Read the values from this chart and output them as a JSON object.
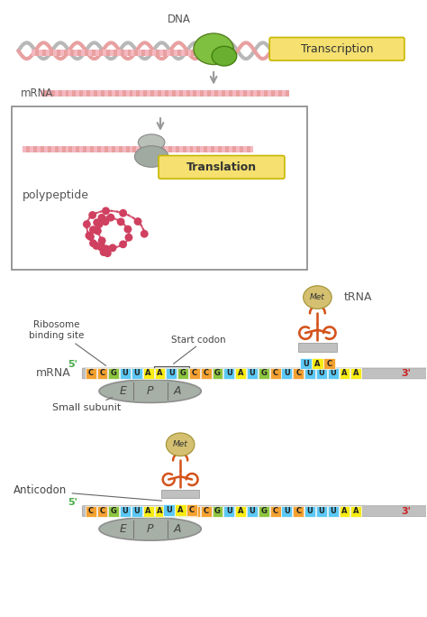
{
  "bg_color": "#ffffff",
  "transcription_label": "Transcription",
  "translation_label": "Translation",
  "mrna_label": "mRNA",
  "dna_label": "DNA",
  "trna_label": "tRNA",
  "met_label": "Met",
  "uac_label": "UAC",
  "ribosome_binding_label": "Ribosome\nbinding site",
  "start_codon_label": "Start codon",
  "small_subunit_label": "Small subunit",
  "anticodon_label": "Anticodon",
  "polypeptide_label": "polypeptide",
  "epa_labels": [
    "E",
    "P",
    "A"
  ],
  "mrna_sequence": [
    "C",
    "C",
    "G",
    "U",
    "U",
    "A",
    "A",
    "U",
    "G",
    "C",
    "C",
    "G",
    "U",
    "A",
    "U",
    "G",
    "C",
    "U",
    "C",
    "U",
    "U",
    "U",
    "A",
    "A"
  ],
  "nucleotide_colors": {
    "C": "#f4a130",
    "G": "#8dc63f",
    "U": "#5bc8f5",
    "A": "#f7ec13"
  },
  "trna_color": "#d4521a",
  "mrna_strand_color": "#e8a0a0",
  "dna_gray_color": "#b8b8b8",
  "dna_pink_color": "#e8a0a0",
  "ribosome_color": "#b8bfb8",
  "transcription_box_color": "#f5e070",
  "translation_box_color": "#f5e070",
  "five_prime_color": "#4ab54a",
  "three_prime_color": "#e03030",
  "polymerase_color": "#70b840",
  "ribosome_body_color": "#a0aaa0",
  "met_ball_color": "#d4c070",
  "met_ball_edge": "#a09030",
  "annotation_color": "#444444",
  "label_color": "#555555",
  "arrow_color": "#999999",
  "box_edge_color": "#888888",
  "five_three_color_5": "#44aa44",
  "five_three_color_3": "#cc2222"
}
